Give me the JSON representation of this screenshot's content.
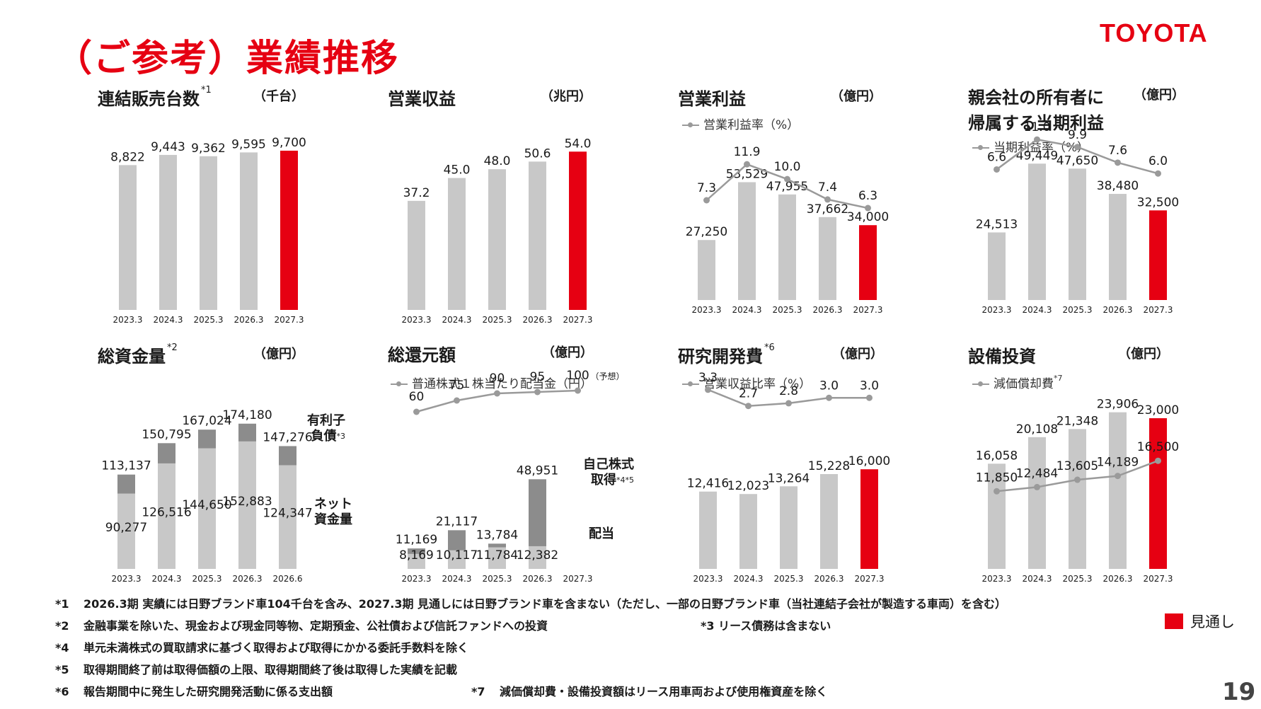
{
  "page": {
    "title": "（ご参考）業績推移",
    "logo": "TOYOTA",
    "page_number": "19"
  },
  "colors": {
    "actual": "#c8c8c8",
    "forecast": "#e60012",
    "debt": "#8c8c8c",
    "line": "#9a9a9a"
  },
  "chart_data": [
    {
      "id": "sales",
      "type": "bar",
      "title": "連結販売台数",
      "title_note": "*1",
      "unit": "（千台）",
      "categories": [
        "2023.3",
        "2024.3",
        "2025.3",
        "2026.3",
        "2027.3"
      ],
      "values": [
        8822,
        9443,
        9362,
        9595,
        9700
      ],
      "labels": [
        "8,822",
        "9,443",
        "9,362",
        "9,595",
        "9,700"
      ],
      "forecast": [
        false,
        false,
        false,
        false,
        true
      ],
      "ylim": [
        0,
        10000
      ]
    },
    {
      "id": "revenue",
      "type": "bar",
      "title": "営業収益",
      "unit": "（兆円）",
      "categories": [
        "2023.3",
        "2024.3",
        "2025.3",
        "2026.3",
        "2027.3"
      ],
      "values": [
        37.2,
        45.0,
        48.0,
        50.6,
        54.0
      ],
      "labels": [
        "37.2",
        "45.0",
        "48.0",
        "50.6",
        "54.0"
      ],
      "forecast": [
        false,
        false,
        false,
        false,
        true
      ],
      "ylim": [
        0,
        56
      ]
    },
    {
      "id": "op_income",
      "type": "bar",
      "title": "営業利益",
      "unit": "（億円）",
      "categories": [
        "2023.3",
        "2024.3",
        "2025.3",
        "2026.3",
        "2027.3"
      ],
      "values": [
        27250,
        53529,
        47955,
        37662,
        34000
      ],
      "labels": [
        "27,250",
        "53,529",
        "47,955",
        "37,662",
        "34,000"
      ],
      "forecast": [
        false,
        false,
        false,
        false,
        true
      ],
      "ylim": [
        0,
        90000
      ],
      "line": {
        "name": "営業利益率（%）",
        "values": [
          7.3,
          11.9,
          10.0,
          7.4,
          6.3
        ],
        "labels": [
          "7.3",
          "11.9",
          "10.0",
          "7.4",
          "6.3"
        ],
        "ylim": [
          -6,
          13
        ]
      }
    },
    {
      "id": "net_income",
      "type": "bar",
      "title": "親会社の所有者に",
      "title_line2": "帰属する当期利益",
      "unit": "（億円）",
      "categories": [
        "2023.3",
        "2024.3",
        "2025.3",
        "2026.3",
        "2027.3"
      ],
      "values": [
        24513,
        49449,
        47650,
        38480,
        32500
      ],
      "labels": [
        "24,513",
        "49,449",
        "47,650",
        "38,480",
        "32,500"
      ],
      "forecast": [
        false,
        false,
        false,
        false,
        true
      ],
      "ylim": [
        0,
        78000
      ],
      "line": {
        "name": "当期利益率（%）",
        "values": [
          6.6,
          11.0,
          9.9,
          7.6,
          6.0
        ],
        "labels": [
          "6.6",
          "11.0",
          "9.9",
          "7.6",
          "6.0"
        ],
        "ylim": [
          -12,
          13
        ]
      }
    },
    {
      "id": "liquidity",
      "type": "stacked-bar",
      "title": "総資金量",
      "title_note": "*2",
      "unit": "（億円）",
      "categories": [
        "2023.3",
        "2024.3",
        "2025.3",
        "2026.3",
        "2026.6"
      ],
      "series": [
        {
          "name": "ネット資金量",
          "values": [
            90277,
            126516,
            144650,
            152883,
            124347
          ],
          "labels": [
            "90,277",
            "126,516",
            "144,650",
            "152,883",
            "124,347"
          ]
        },
        {
          "name": "有利子負債",
          "values": [
            22860,
            24279,
            22374,
            21297,
            22929
          ]
        }
      ],
      "totals": [
        113137,
        150795,
        167024,
        174180,
        147276
      ],
      "total_labels": [
        "113,137",
        "150,795",
        "167,024",
        "174,180",
        "147,276"
      ],
      "side_labels": {
        "debt_1": "有利子",
        "debt_2": "負債",
        "debt_note": "*3",
        "net_1": "ネット",
        "net_2": "資金量"
      },
      "ylim": [
        0,
        185000
      ]
    },
    {
      "id": "returns",
      "type": "stacked-bar",
      "title": "総還元額",
      "unit": "（億円）",
      "categories": [
        "2023.3",
        "2024.3",
        "2025.3",
        "2026.3",
        "2027.3"
      ],
      "series": [
        {
          "name": "配当",
          "values": [
            8169,
            10117,
            11784,
            12382,
            null
          ],
          "labels": [
            "8,169",
            "10,117",
            "11,784",
            "12,382",
            ""
          ]
        },
        {
          "name": "自己株式取得",
          "values": [
            3000,
            11000,
            2000,
            36569,
            null
          ]
        }
      ],
      "totals": [
        11169,
        21117,
        13784,
        48951,
        null
      ],
      "total_labels": [
        "11,169",
        "21,117",
        "13,784",
        "48,951",
        ""
      ],
      "side_labels": {
        "buyback_1": "自己株式",
        "buyback_2": "取得",
        "buyback_note": "*4*5",
        "dividend": "配当"
      },
      "ylim": [
        0,
        68000
      ],
      "line": {
        "name": "普通株式１株当たり配当金（円）",
        "values": [
          60,
          75,
          90,
          95,
          100
        ],
        "labels": [
          "60",
          "75",
          "90",
          "95",
          "100"
        ],
        "last_note": "（予想）"
      }
    },
    {
      "id": "rnd",
      "type": "bar",
      "title": "研究開発費",
      "title_note": "*6",
      "unit": "（億円）",
      "categories": [
        "2023.3",
        "2024.3",
        "2025.3",
        "2026.3",
        "2027.3"
      ],
      "values": [
        12416,
        12023,
        13264,
        15228,
        16000
      ],
      "labels": [
        "12,416",
        "12,023",
        "13,264",
        "15,228",
        "16,000"
      ],
      "forecast": [
        false,
        false,
        false,
        false,
        true
      ],
      "ylim": [
        0,
        25000
      ],
      "line": {
        "name": "営業収益比率（%）",
        "values": [
          3.3,
          2.7,
          2.8,
          3.0,
          3.0
        ],
        "labels": [
          "3.3",
          "2.7",
          "2.8",
          "3.0",
          "3.0"
        ],
        "ylim": [
          0,
          4
        ]
      }
    },
    {
      "id": "capex",
      "type": "bar",
      "title": "設備投資",
      "unit": "（億円）",
      "categories": [
        "2023.3",
        "2024.3",
        "2025.3",
        "2026.3",
        "2027.3"
      ],
      "values": [
        16058,
        20108,
        21348,
        23906,
        23000
      ],
      "labels": [
        "16,058",
        "20,108",
        "21,348",
        "23,906",
        "23,000"
      ],
      "forecast": [
        false,
        false,
        false,
        false,
        true
      ],
      "ylim": [
        0,
        27000
      ],
      "line": {
        "name": "減価償却費",
        "name_note": "*7",
        "values": [
          11850,
          12484,
          13605,
          14189,
          16500
        ],
        "labels": [
          "11,850",
          "12,484",
          "13,605",
          "14,189",
          "16,500"
        ]
      }
    }
  ],
  "notes": [
    {
      "key": "*1",
      "text": "2026.3期 実績には日野ブランド車104千台を含み、2027.3期 見通しには日野ブランド車を含まない（ただし、一部の日野ブランド車（当社連結子会社が製造する車両）を含む）"
    },
    {
      "key": "*2",
      "text": "金融事業を除いた、現金および現金同等物、定期預金、公社債および信託ファンドへの投資"
    },
    {
      "key": "*3",
      "text": "リース債務は含まない"
    },
    {
      "key": "*4",
      "text": "単元未満株式の買取請求に基づく取得および取得にかかる委託手数料を除く"
    },
    {
      "key": "*5",
      "text": "取得期間終了前は取得価額の上限、取得期間終了後は取得した実績を記載"
    },
    {
      "key": "*6",
      "text": "報告期間中に発生した研究開発活動に係る支出額"
    },
    {
      "key": "*7",
      "text": "減価償却費・設備投資額はリース用車両および使用権資産を除く"
    }
  ],
  "legend": {
    "forecast": "見通し"
  }
}
